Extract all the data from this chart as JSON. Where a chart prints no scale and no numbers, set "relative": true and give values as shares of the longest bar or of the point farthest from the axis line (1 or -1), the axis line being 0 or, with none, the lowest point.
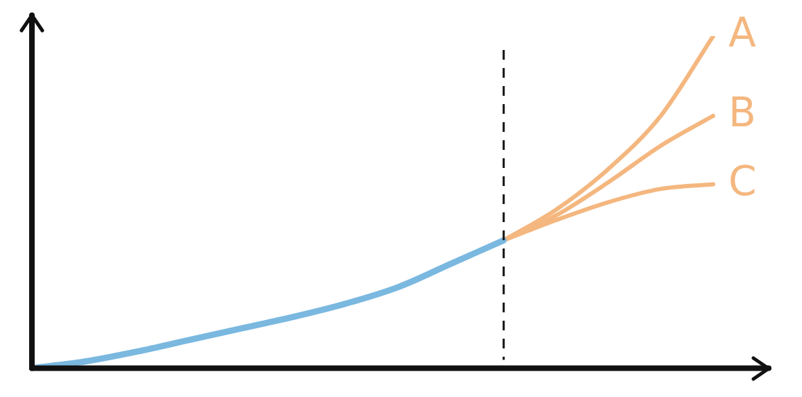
{
  "chart_data": {
    "type": "line",
    "relative": true,
    "categories": [
      null,
      null,
      null,
      null,
      null,
      null,
      null,
      null,
      null,
      null,
      null,
      null,
      null,
      null
    ],
    "series": [
      {
        "color": "#7ab8e0",
        "values": [
          0,
          0.02,
          0.05,
          0.085,
          0.12,
          0.155,
          0.195,
          0.245,
          0.315,
          0.385,
          null,
          null,
          null,
          null
        ]
      },
      {
        "name": "A",
        "color": "#f4b77f",
        "values": [
          null,
          null,
          null,
          null,
          null,
          null,
          null,
          null,
          null,
          0.385,
          0.477,
          0.6,
          0.76,
          1
        ]
      },
      {
        "name": "B",
        "color": "#f4b77f",
        "values": [
          null,
          null,
          null,
          null,
          null,
          null,
          null,
          null,
          null,
          0.385,
          0.46,
          0.56,
          0.67,
          0.76
        ]
      },
      {
        "name": "C",
        "color": "#f4b77f",
        "values": [
          null,
          null,
          null,
          null,
          null,
          null,
          null,
          null,
          null,
          0.385,
          0.446,
          0.5,
          0.54,
          0.554
        ]
      }
    ],
    "grid": false,
    "legend": false,
    "marker": "none"
  }
}
